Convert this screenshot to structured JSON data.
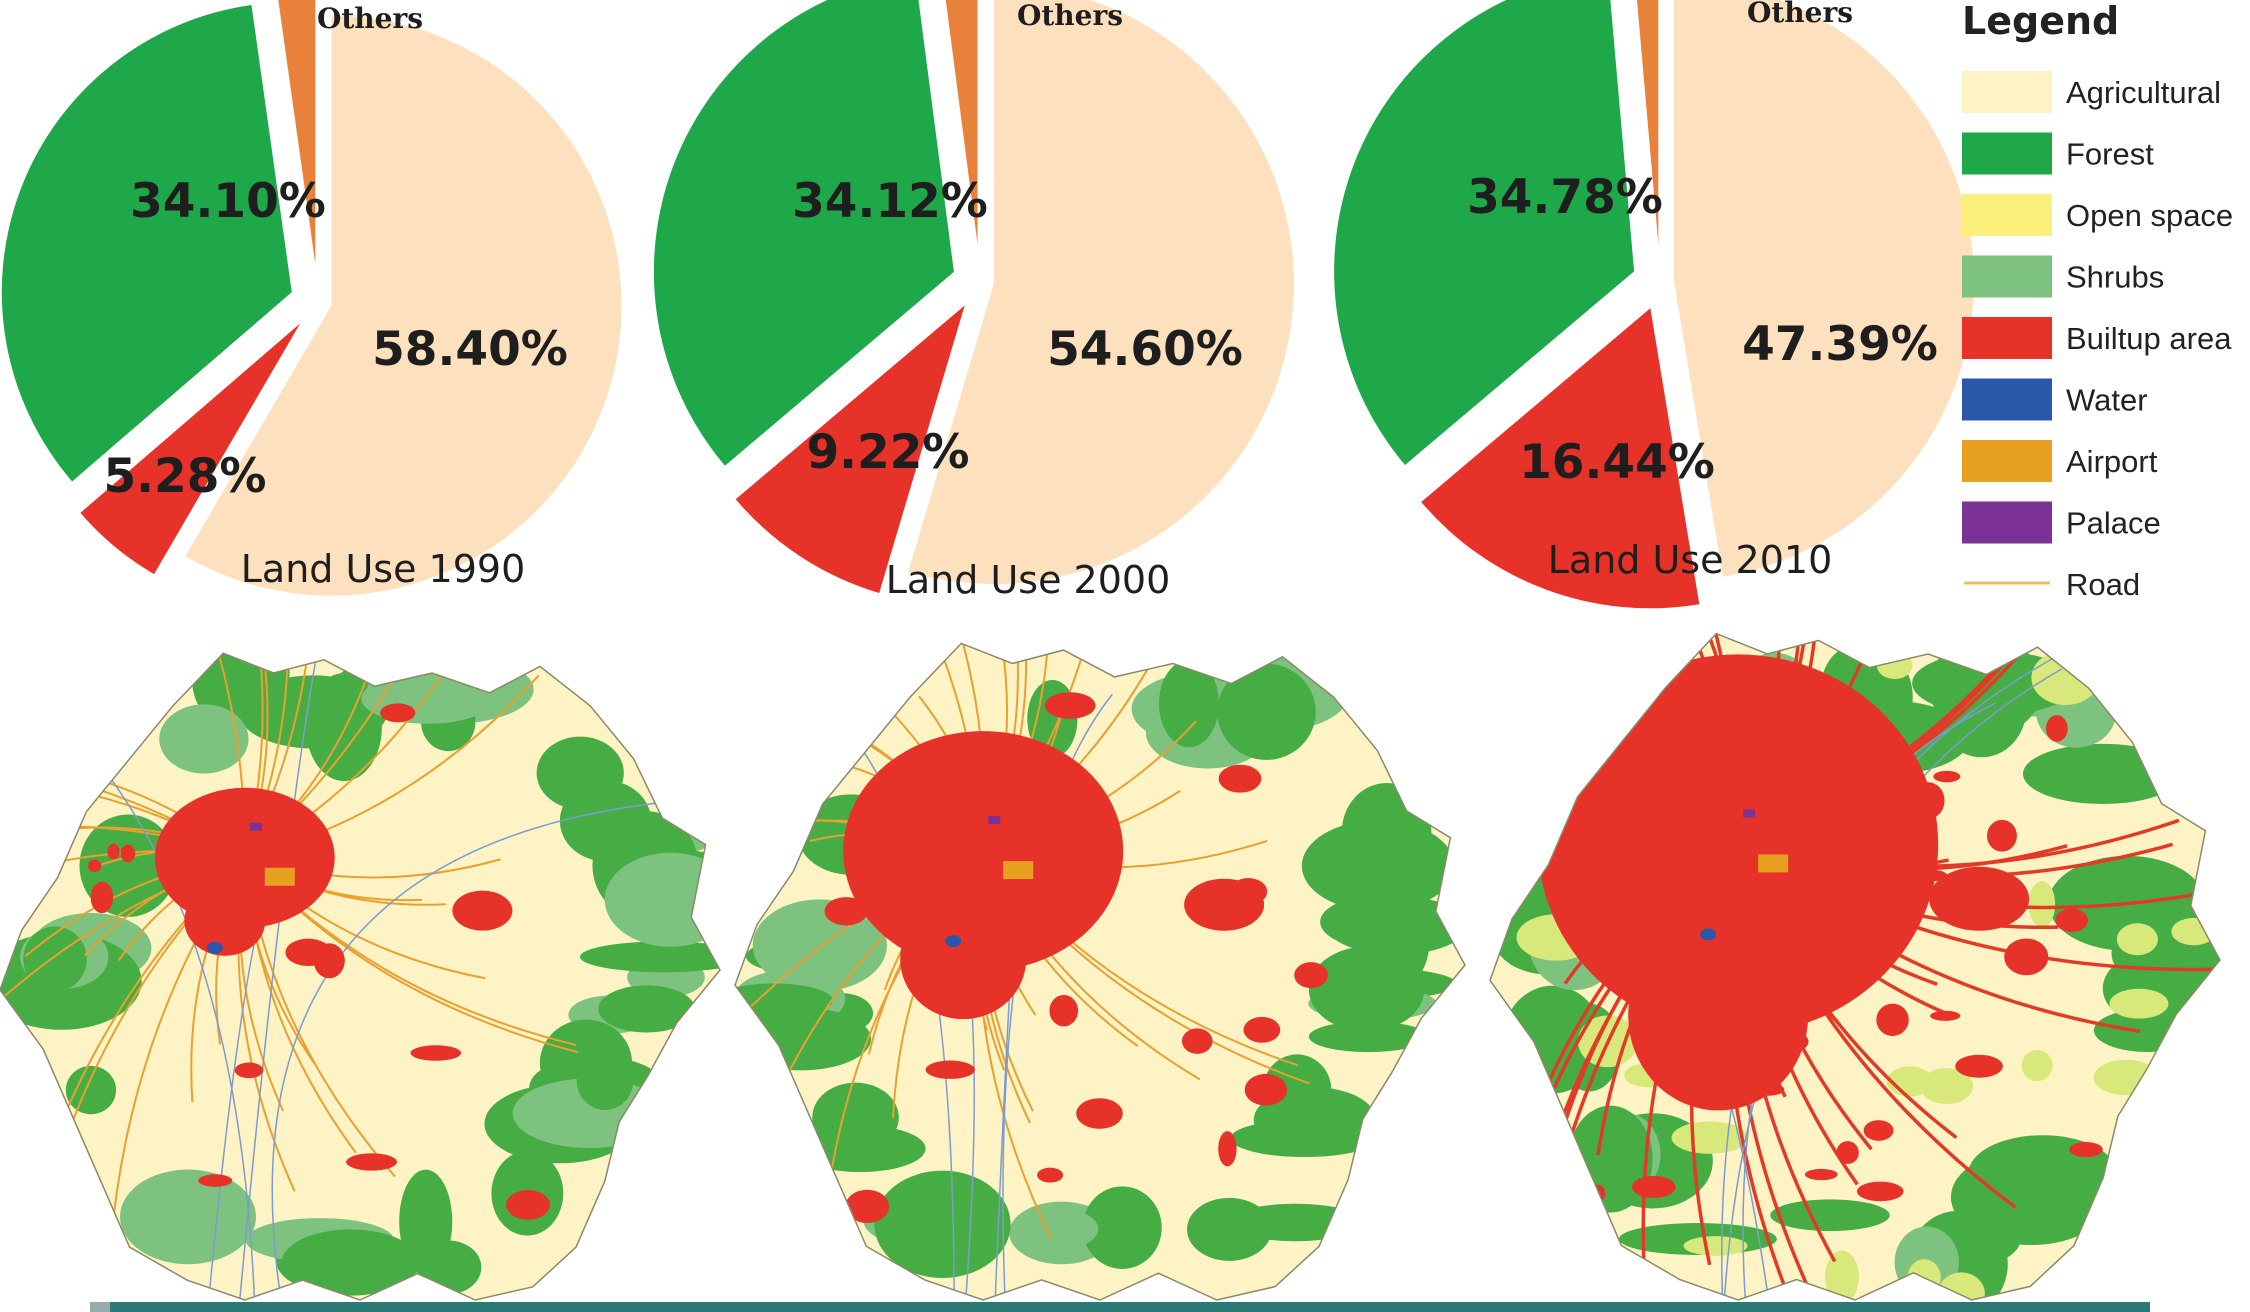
{
  "colors": {
    "agricultural": "#fde8c4",
    "agricultural_map": "#fdf3c4",
    "forest": "#1ea84a",
    "forest_map": "#45ad44",
    "open_space": "#fbf07a",
    "shrubs": "#7dc27e",
    "builtup": "#e63229",
    "water": "#2a57a8",
    "airport": "#e8a020",
    "palace": "#7b3294",
    "road": "#e9a030",
    "others_slice": "#e8823a",
    "footer_bar": "#2c7a78"
  },
  "legend": {
    "title": "Legend",
    "items": [
      {
        "label": "Agricultural",
        "color": "#fdf3c4",
        "kind": "swatch"
      },
      {
        "label": "Forest",
        "color": "#1ea84a",
        "kind": "swatch"
      },
      {
        "label": "Open space",
        "color": "#fbf07a",
        "kind": "swatch"
      },
      {
        "label": "Shrubs",
        "color": "#7dc27e",
        "kind": "swatch"
      },
      {
        "label": "Builtup area",
        "color": "#e63229",
        "kind": "swatch"
      },
      {
        "label": "Water",
        "color": "#2a57a8",
        "kind": "swatch"
      },
      {
        "label": "Airport",
        "color": "#e8a020",
        "kind": "swatch"
      },
      {
        "label": "Palace",
        "color": "#7b3294",
        "kind": "swatch"
      },
      {
        "label": "Road",
        "color": "#e9c060",
        "kind": "line"
      }
    ]
  },
  "chart_data": [
    {
      "type": "pie",
      "title": "Land Use 1990",
      "slices": [
        {
          "category": "Agricultural",
          "value": 58.4,
          "label": "58.40%"
        },
        {
          "category": "Builtup area",
          "value": 5.28,
          "label": "5.28%"
        },
        {
          "category": "Forest",
          "value": 34.1,
          "label": "34.10%"
        },
        {
          "category": "Others",
          "value": 2.22,
          "label": "Others"
        }
      ]
    },
    {
      "type": "pie",
      "title": "Land Use 2000",
      "slices": [
        {
          "category": "Agricultural",
          "value": 54.6,
          "label": "54.60%"
        },
        {
          "category": "Builtup area",
          "value": 9.22,
          "label": "9.22%"
        },
        {
          "category": "Forest",
          "value": 34.12,
          "label": "34.12%"
        },
        {
          "category": "Others",
          "value": 2.06,
          "label": "Others"
        }
      ]
    },
    {
      "type": "pie",
      "title": "Land Use 2010",
      "slices": [
        {
          "category": "Agricultural",
          "value": 47.39,
          "label": "47.39%"
        },
        {
          "category": "Builtup area",
          "value": 16.44,
          "label": "16.44%"
        },
        {
          "category": "Forest",
          "value": 34.78,
          "label": "34.78%"
        },
        {
          "category": "Others",
          "value": 1.39,
          "label": "Others"
        }
      ]
    }
  ],
  "maps": [
    {
      "year": "1990",
      "builtup_extent": "small"
    },
    {
      "year": "2000",
      "builtup_extent": "medium"
    },
    {
      "year": "2010",
      "builtup_extent": "large"
    }
  ]
}
